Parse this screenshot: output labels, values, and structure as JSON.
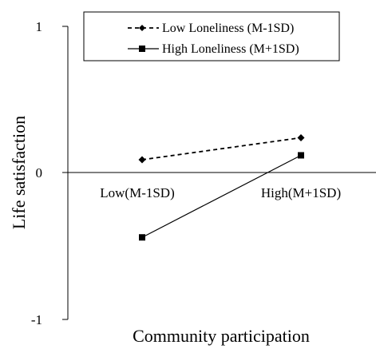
{
  "chart_data": {
    "type": "line",
    "title": "",
    "xlabel": "Community participation",
    "ylabel": "Life satisfaction",
    "categories": [
      "Low(M-1SD)",
      "High(M+1SD)"
    ],
    "ylim": [
      -1,
      1
    ],
    "yticks": [
      "1",
      "0",
      "-1"
    ],
    "grid": false,
    "legend_position": "top-right",
    "series": [
      {
        "name": "Low Loneliness (M-1SD)",
        "values": [
          0.09,
          0.24
        ],
        "line_style": "dashed",
        "marker": "diamond",
        "color": "#000000"
      },
      {
        "name": "High Loneliness (M+1SD)",
        "values": [
          -0.44,
          0.12
        ],
        "line_style": "solid",
        "marker": "square",
        "color": "#000000"
      }
    ]
  }
}
